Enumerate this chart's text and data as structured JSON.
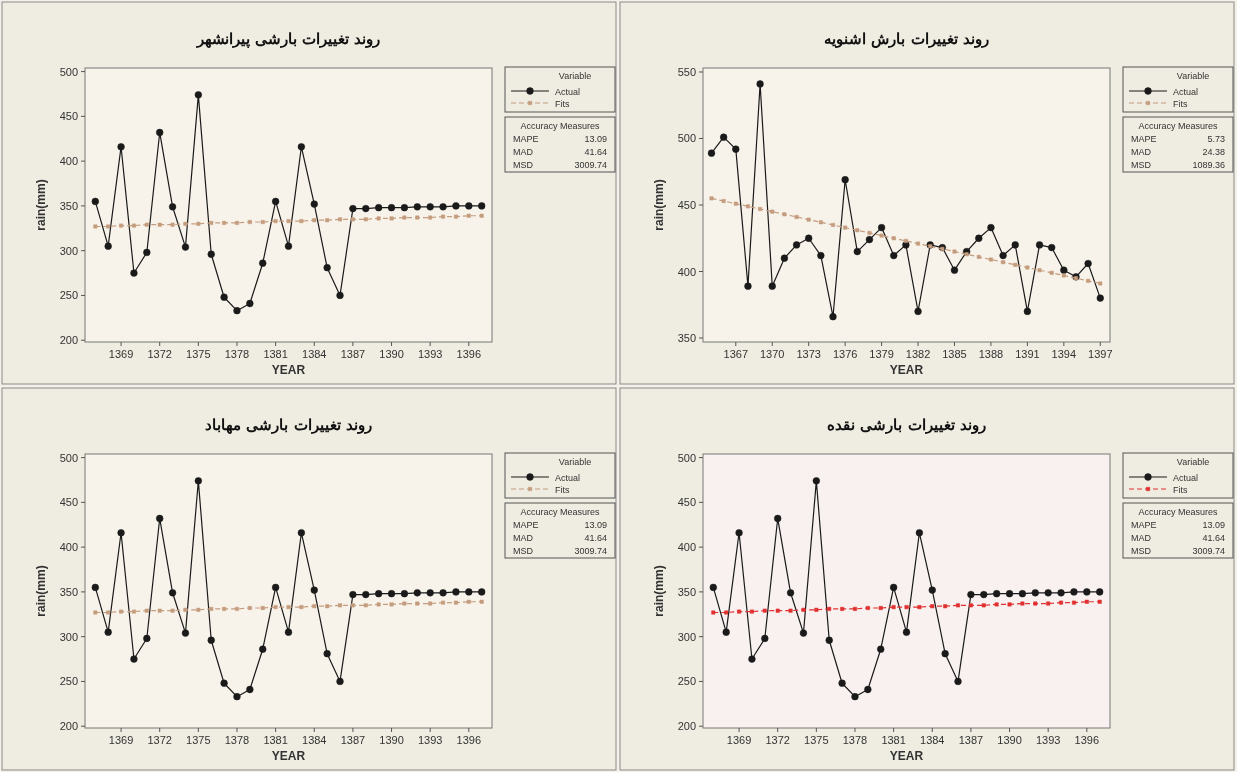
{
  "chart_data": [
    {
      "type": "line",
      "title": "روند تغییرات بارشی پیرانشهر",
      "xlabel": "YEAR",
      "ylabel": "rain(mm)",
      "legend_title": "Variable",
      "legend": "right",
      "grid": false,
      "x": [
        1367,
        1368,
        1369,
        1370,
        1371,
        1372,
        1373,
        1374,
        1375,
        1376,
        1377,
        1378,
        1379,
        1380,
        1381,
        1382,
        1383,
        1384,
        1385,
        1386,
        1387,
        1388,
        1389,
        1390,
        1391,
        1392,
        1393,
        1394,
        1395,
        1396,
        1397
      ],
      "xlim": [
        1366.2,
        1397.8
      ],
      "xticks": [
        1369,
        1372,
        1375,
        1378,
        1381,
        1384,
        1387,
        1390,
        1393,
        1396
      ],
      "ylim": [
        198,
        504
      ],
      "yticks": [
        200,
        250,
        300,
        350,
        400,
        450,
        500
      ],
      "series": [
        {
          "name": "Actual",
          "color": "#1a1a1a",
          "marker": "circle",
          "line_style": "solid",
          "values": [
            355,
            305,
            416,
            275,
            298,
            432,
            349,
            304,
            474,
            296,
            248,
            233,
            241,
            286,
            355,
            305,
            416,
            352,
            281,
            250,
            347,
            347,
            348,
            348,
            348,
            349,
            349,
            349,
            350,
            350,
            350
          ]
        },
        {
          "name": "Fits",
          "color": "#c49c7e",
          "marker": "square",
          "line_style": "dashed",
          "values": [
            327,
            327,
            328,
            328,
            329,
            329,
            329,
            330,
            330,
            331,
            331,
            331,
            332,
            332,
            333,
            333,
            333,
            334,
            334,
            335,
            335,
            335,
            336,
            336,
            337,
            337,
            337,
            338,
            338,
            339,
            339
          ]
        }
      ],
      "annotations": [
        "Accuracy Measures",
        "MAPE",
        "13.09",
        "MAD",
        "41.64",
        "MSD",
        "3009.74"
      ]
    },
    {
      "type": "line",
      "title": "روند تغییرات بارش اشنویه",
      "xlabel": "YEAR",
      "ylabel": "rain(mm)",
      "legend_title": "Variable",
      "legend": "right",
      "grid": false,
      "x": [
        1365,
        1366,
        1367,
        1368,
        1369,
        1370,
        1371,
        1372,
        1373,
        1374,
        1375,
        1376,
        1377,
        1378,
        1379,
        1380,
        1381,
        1382,
        1383,
        1384,
        1385,
        1386,
        1387,
        1388,
        1389,
        1390,
        1391,
        1392,
        1393,
        1394,
        1395,
        1396,
        1397
      ],
      "xlim": [
        1364.3,
        1397.8
      ],
      "xticks": [
        1367,
        1370,
        1373,
        1376,
        1379,
        1382,
        1385,
        1388,
        1391,
        1394,
        1397
      ],
      "ylim": [
        347,
        553
      ],
      "yticks": [
        350,
        400,
        450,
        500,
        550
      ],
      "series": [
        {
          "name": "Actual",
          "color": "#1a1a1a",
          "marker": "circle",
          "line_style": "solid",
          "values": [
            489,
            501,
            492,
            389,
            541,
            389,
            410,
            420,
            425,
            412,
            366,
            469,
            415,
            424,
            433,
            412,
            420,
            370,
            420,
            418,
            401,
            415,
            425,
            433,
            412,
            420,
            370,
            420,
            418,
            401,
            396,
            406,
            380
          ]
        },
        {
          "name": "Fits",
          "color": "#c49c7e",
          "marker": "square",
          "line_style": "dashed",
          "values": [
            455,
            453,
            451,
            449,
            447,
            445,
            443,
            441,
            439,
            437,
            435,
            433,
            431,
            429,
            427,
            425,
            423,
            421,
            419,
            417,
            415,
            413,
            411,
            409,
            407,
            405,
            403,
            401,
            399,
            397,
            395,
            393,
            391
          ]
        }
      ],
      "annotations": [
        "Accuracy Measures",
        "MAPE",
        "5.73",
        "MAD",
        "24.38",
        "MSD",
        "1089.36"
      ]
    },
    {
      "type": "line",
      "title": "روند تغییرات بارشی مهاباد",
      "xlabel": "YEAR",
      "ylabel": "rain(mm)",
      "legend_title": "Variable",
      "legend": "right",
      "grid": false,
      "x": [
        1367,
        1368,
        1369,
        1370,
        1371,
        1372,
        1373,
        1374,
        1375,
        1376,
        1377,
        1378,
        1379,
        1380,
        1381,
        1382,
        1383,
        1384,
        1385,
        1386,
        1387,
        1388,
        1389,
        1390,
        1391,
        1392,
        1393,
        1394,
        1395,
        1396,
        1397
      ],
      "xlim": [
        1366.2,
        1397.8
      ],
      "xticks": [
        1369,
        1372,
        1375,
        1378,
        1381,
        1384,
        1387,
        1390,
        1393,
        1396
      ],
      "ylim": [
        198,
        504
      ],
      "yticks": [
        200,
        250,
        300,
        350,
        400,
        450,
        500
      ],
      "series": [
        {
          "name": "Actual",
          "color": "#1a1a1a",
          "marker": "circle",
          "line_style": "solid",
          "values": [
            355,
            305,
            416,
            275,
            298,
            432,
            349,
            304,
            474,
            296,
            248,
            233,
            241,
            286,
            355,
            305,
            416,
            352,
            281,
            250,
            347,
            347,
            348,
            348,
            348,
            349,
            349,
            349,
            350,
            350,
            350
          ]
        },
        {
          "name": "Fits",
          "color": "#c49c7e",
          "marker": "square",
          "line_style": "dashed",
          "values": [
            327,
            327,
            328,
            328,
            329,
            329,
            329,
            330,
            330,
            331,
            331,
            331,
            332,
            332,
            333,
            333,
            333,
            334,
            334,
            335,
            335,
            335,
            336,
            336,
            337,
            337,
            337,
            338,
            338,
            339,
            339
          ]
        }
      ],
      "annotations": [
        "Accuracy Measures",
        "MAPE",
        "13.09",
        "MAD",
        "41.64",
        "MSD",
        "3009.74"
      ]
    },
    {
      "type": "line",
      "title": "روند تغییرات بارشی نقده",
      "xlabel": "YEAR",
      "ylabel": "rain(mm)",
      "legend_title": "Variable",
      "legend": "right",
      "grid": false,
      "x": [
        1367,
        1368,
        1369,
        1370,
        1371,
        1372,
        1373,
        1374,
        1375,
        1376,
        1377,
        1378,
        1379,
        1380,
        1381,
        1382,
        1383,
        1384,
        1385,
        1386,
        1387,
        1388,
        1389,
        1390,
        1391,
        1392,
        1393,
        1394,
        1395,
        1396,
        1397
      ],
      "xlim": [
        1366.2,
        1397.8
      ],
      "xticks": [
        1369,
        1372,
        1375,
        1378,
        1381,
        1384,
        1387,
        1390,
        1393,
        1396
      ],
      "ylim": [
        198,
        504
      ],
      "yticks": [
        200,
        250,
        300,
        350,
        400,
        450,
        500
      ],
      "series": [
        {
          "name": "Actual",
          "color": "#1a1a1a",
          "marker": "circle",
          "line_style": "solid",
          "values": [
            355,
            305,
            416,
            275,
            298,
            432,
            349,
            304,
            474,
            296,
            248,
            233,
            241,
            286,
            355,
            305,
            416,
            352,
            281,
            250,
            347,
            347,
            348,
            348,
            348,
            349,
            349,
            349,
            350,
            350,
            350
          ]
        },
        {
          "name": "Fits",
          "color": "#e03030",
          "marker": "square",
          "line_style": "dashed",
          "values": [
            327,
            327,
            328,
            328,
            329,
            329,
            329,
            330,
            330,
            331,
            331,
            331,
            332,
            332,
            333,
            333,
            333,
            334,
            334,
            335,
            335,
            335,
            336,
            336,
            337,
            337,
            337,
            338,
            338,
            339,
            339
          ]
        }
      ],
      "annotations": [
        "Accuracy Measures",
        "MAPE",
        "13.09",
        "MAD",
        "41.64",
        "MSD",
        "3009.74"
      ]
    }
  ]
}
